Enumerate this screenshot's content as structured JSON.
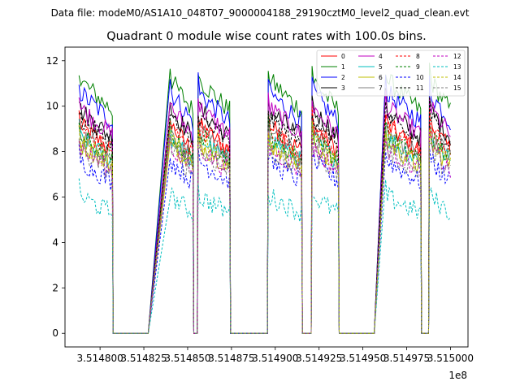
{
  "header": {
    "data_file": "Data file: modeM0/AS1A10_048T07_9000004188_29190cztM0_level2_quad_clean.evt"
  },
  "chart_data": {
    "type": "line",
    "title": "Quadrant 0 module wise count rates with 100.0s bins.",
    "xlabel": "",
    "ylabel": "",
    "x_offset_label": "1e8",
    "xlim": [
      3.51478,
      3.51501
    ],
    "ylim": [
      -0.6,
      12.6
    ],
    "x_ticks": [
      3.5148,
      3.514825,
      3.51485,
      3.514875,
      3.5149,
      3.514925,
      3.51495,
      3.514975,
      3.515
    ],
    "x_tick_labels": [
      "3.514800",
      "3.514825",
      "3.514850",
      "3.514875",
      "3.514900",
      "3.514925",
      "3.514950",
      "3.514975",
      "3.515000"
    ],
    "y_ticks": [
      0,
      2,
      4,
      6,
      8,
      10,
      12
    ],
    "y_tick_labels": [
      "0",
      "2",
      "4",
      "6",
      "8",
      "10",
      "12"
    ],
    "grid": false,
    "legend_position": "top-right",
    "segments": [
      {
        "on": [
          3.514788,
          3.514807
        ],
        "off_after": [
          3.514807,
          3.514828
        ]
      },
      {
        "on": [
          3.51484,
          3.514853
        ],
        "off_after": [
          3.514853,
          3.514856
        ]
      },
      {
        "on": [
          3.514856,
          3.514874
        ],
        "off_after": [
          3.514874,
          3.514896
        ]
      },
      {
        "on": [
          3.514896,
          3.514915
        ],
        "off_after": [
          3.514915,
          3.514921
        ]
      },
      {
        "on": [
          3.514921,
          3.514936
        ],
        "off_after": [
          3.514936,
          3.514957
        ]
      },
      {
        "on": [
          3.514963,
          3.514983
        ],
        "off_after": [
          3.514983,
          3.514988
        ]
      },
      {
        "on": [
          3.514988,
          3.515
        ]
      }
    ],
    "series": [
      {
        "name": "0",
        "color": "#ff0000",
        "dash": "solid",
        "level": 8.2
      },
      {
        "name": "1",
        "color": "#008000",
        "dash": "solid",
        "level": 10.0
      },
      {
        "name": "2",
        "color": "#0000ff",
        "dash": "solid",
        "level": 9.5
      },
      {
        "name": "3",
        "color": "#000000",
        "dash": "solid",
        "level": 8.8
      },
      {
        "name": "4",
        "color": "#c000c0",
        "dash": "solid",
        "level": 8.9
      },
      {
        "name": "5",
        "color": "#00bfbf",
        "dash": "solid",
        "level": 7.7
      },
      {
        "name": "6",
        "color": "#bfbf00",
        "dash": "solid",
        "level": 7.5
      },
      {
        "name": "7",
        "color": "#808080",
        "dash": "solid",
        "level": 7.9
      },
      {
        "name": "8",
        "color": "#ff0000",
        "dash": "dashed",
        "level": 8.1
      },
      {
        "name": "9",
        "color": "#008000",
        "dash": "dashed",
        "level": 7.8
      },
      {
        "name": "10",
        "color": "#0000ff",
        "dash": "dashed",
        "level": 6.8
      },
      {
        "name": "11",
        "color": "#000000",
        "dash": "dashed",
        "level": 8.5
      },
      {
        "name": "12",
        "color": "#c000c0",
        "dash": "dashed",
        "level": 7.3
      },
      {
        "name": "13",
        "color": "#00bfbf",
        "dash": "dashed",
        "level": 5.4
      },
      {
        "name": "14",
        "color": "#bfbf00",
        "dash": "dashed",
        "level": 7.6
      },
      {
        "name": "15",
        "color": "#808080",
        "dash": "dashed",
        "level": 7.2
      }
    ]
  }
}
